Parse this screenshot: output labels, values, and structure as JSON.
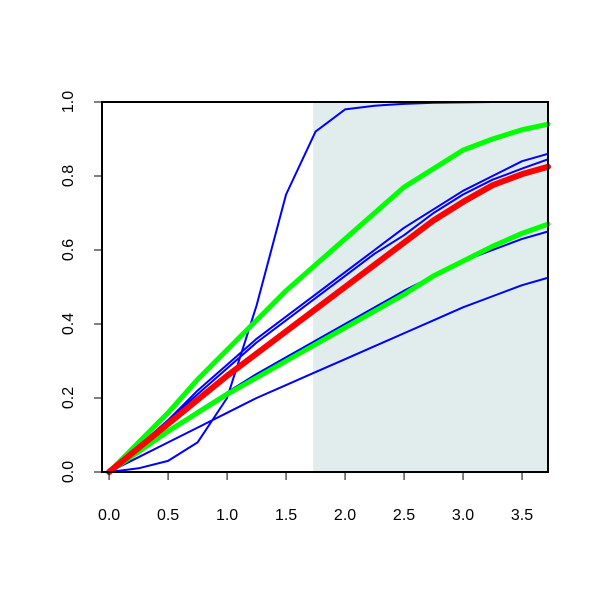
{
  "chart_data": {
    "type": "line",
    "title": "",
    "xlabel": "",
    "ylabel": "",
    "xlim": [
      -0.06,
      3.72
    ],
    "ylim": [
      0.0,
      1.0
    ],
    "x_ticks": [
      0.0,
      0.5,
      1.0,
      1.5,
      2.0,
      2.5,
      3.0,
      3.5
    ],
    "x_tick_labels": [
      "0.0",
      "0.5",
      "1.0",
      "1.5",
      "2.0",
      "2.5",
      "3.0",
      "3.5"
    ],
    "y_ticks": [
      0.0,
      0.2,
      0.4,
      0.6,
      0.8,
      1.0
    ],
    "y_tick_labels": [
      "0.0",
      "0.2",
      "0.4",
      "0.6",
      "0.8",
      "1.0"
    ],
    "grid": false,
    "legend": "none",
    "shaded_region": {
      "x_from": 1.73,
      "x_to": 3.72,
      "color": "#e1ecec"
    },
    "x": [
      0.0,
      0.25,
      0.5,
      0.75,
      1.0,
      1.25,
      1.5,
      1.75,
      2.0,
      2.25,
      2.5,
      2.75,
      3.0,
      3.25,
      3.5,
      3.72
    ],
    "series": [
      {
        "color": "#0000ff",
        "width": 2,
        "values": [
          0.0,
          0.01,
          0.03,
          0.08,
          0.2,
          0.45,
          0.75,
          0.92,
          0.98,
          0.99,
          0.995,
          0.998,
          0.999,
          1.0,
          1.0,
          1.0
        ]
      },
      {
        "color": "#0000ff",
        "width": 2,
        "values": [
          0.0,
          0.07,
          0.14,
          0.22,
          0.29,
          0.36,
          0.42,
          0.48,
          0.54,
          0.6,
          0.66,
          0.71,
          0.76,
          0.8,
          0.84,
          0.86
        ]
      },
      {
        "color": "#0000ff",
        "width": 2,
        "values": [
          0.0,
          0.07,
          0.14,
          0.21,
          0.28,
          0.35,
          0.41,
          0.47,
          0.53,
          0.59,
          0.64,
          0.7,
          0.75,
          0.79,
          0.82,
          0.845
        ]
      },
      {
        "color": "#0000ff",
        "width": 2,
        "values": [
          0.0,
          0.055,
          0.11,
          0.165,
          0.215,
          0.265,
          0.31,
          0.355,
          0.4,
          0.445,
          0.49,
          0.53,
          0.57,
          0.6,
          0.63,
          0.65
        ]
      },
      {
        "color": "#0000ff",
        "width": 2,
        "values": [
          0.0,
          0.04,
          0.08,
          0.12,
          0.16,
          0.2,
          0.235,
          0.27,
          0.305,
          0.34,
          0.375,
          0.41,
          0.445,
          0.475,
          0.505,
          0.525
        ]
      },
      {
        "color": "#00ff00",
        "width": 5,
        "values": [
          0.0,
          0.08,
          0.16,
          0.25,
          0.33,
          0.41,
          0.49,
          0.56,
          0.63,
          0.7,
          0.77,
          0.82,
          0.87,
          0.9,
          0.925,
          0.94
        ]
      },
      {
        "color": "#00ff00",
        "width": 5,
        "values": [
          0.0,
          0.055,
          0.11,
          0.16,
          0.21,
          0.255,
          0.3,
          0.345,
          0.39,
          0.435,
          0.48,
          0.53,
          0.57,
          0.61,
          0.645,
          0.67
        ]
      },
      {
        "color": "#ff0000",
        "width": 6,
        "values": [
          0.0,
          0.065,
          0.13,
          0.195,
          0.26,
          0.32,
          0.38,
          0.44,
          0.5,
          0.56,
          0.62,
          0.68,
          0.73,
          0.775,
          0.805,
          0.825
        ]
      }
    ]
  }
}
